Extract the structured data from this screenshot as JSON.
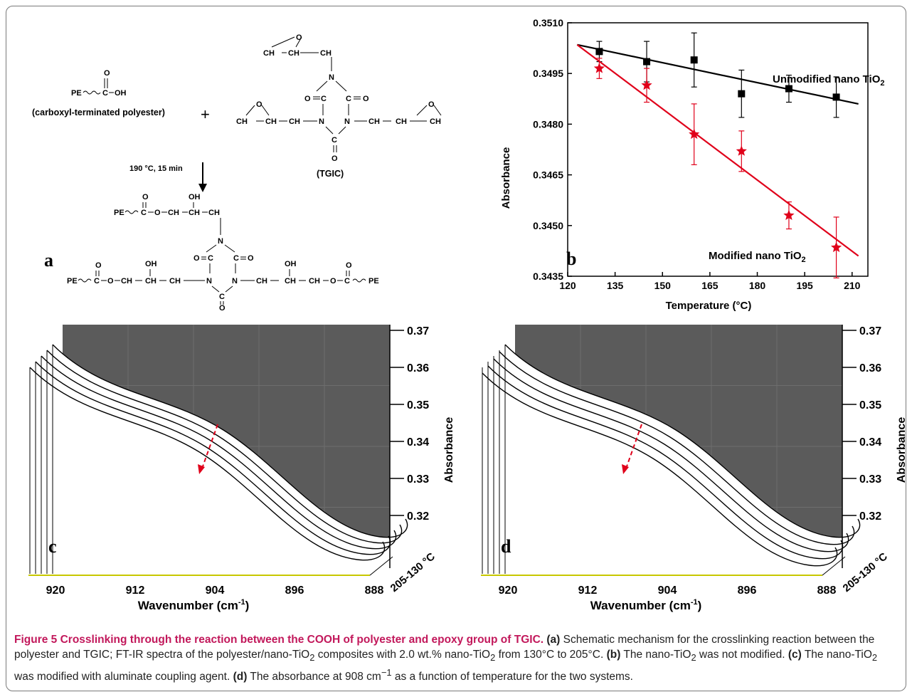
{
  "panel_a": {
    "letter": "a",
    "pe": "PE",
    "cooh_c": "C",
    "cooh_oh": "OH",
    "cooh_o": "O",
    "polyester_label": "(carboxyl-terminated polyester)",
    "plus": "+",
    "tgic_label": "(TGIC)",
    "condition": "190 °C, 15 min",
    "ch2": "CH",
    "ch": "CH",
    "n": "N",
    "o": "O",
    "oh": "OH"
  },
  "panel_b": {
    "letter": "b",
    "unmod_label": "Unmodified nano TiO",
    "mod_label": "Modified nano TiO",
    "sub2": "2"
  },
  "panel_c": {
    "letter": "c"
  },
  "panel_d": {
    "letter": "d"
  },
  "spectra": {
    "x_ticks": [
      "920",
      "912",
      "904",
      "896",
      "888"
    ],
    "y_ticks": [
      "0.37",
      "0.36",
      "0.35",
      "0.34",
      "0.33",
      "0.32"
    ],
    "xlabel": "Wavenumber (cm",
    "xlabel_sup": "-1",
    "xlabel_end": ")",
    "ylabel": "Absorbance",
    "depth_label": "205-130 °C"
  },
  "caption": {
    "title": "Figure 5 Crosslinking through the reaction between the COOH of polyester and epoxy group of TGIC.",
    "a_tag": "(a)",
    "a_text": " Schematic mechanism for the crosslinking reaction between the polyester and TGIC; FT-IR spectra of the polyester/nano-TiO",
    "a_text2": " composites with 2.0 wt.% nano-TiO",
    "a_text3": " from 130°C to 205°C. ",
    "b_tag": "(b)",
    "b_text": " The nano-TiO",
    "b_text2": " was not modified. ",
    "c_tag": "(c)",
    "c_text": " The nano-TiO",
    "c_text2": " was modified with aluminate coupling agent. ",
    "d_tag": "(d)",
    "d_text": " The absorbance at 908 cm",
    "d_sup": "−1",
    "d_text2": " as a function of temperature for the two systems.",
    "sub2": "2"
  },
  "chart_data": {
    "type": "scatter",
    "xlabel": "Temperature (°C)",
    "ylabel": "Absorbance",
    "xlim": [
      120,
      215
    ],
    "ylim": [
      0.3435,
      0.351
    ],
    "x_ticks": [
      120,
      135,
      150,
      165,
      180,
      195,
      210
    ],
    "y_ticks": [
      0.3435,
      0.345,
      0.3465,
      0.348,
      0.3495,
      0.351
    ],
    "series": [
      {
        "name": "Unmodified nano TiO2",
        "color": "#000000",
        "marker": "square",
        "x": [
          130,
          145,
          160,
          175,
          190,
          205
        ],
        "y": [
          0.35015,
          0.34985,
          0.3499,
          0.3489,
          0.34905,
          0.3488
        ],
        "err": [
          0.0003,
          0.0006,
          0.0008,
          0.0007,
          0.0004,
          0.0006
        ],
        "fit": [
          [
            123,
            0.35035
          ],
          [
            212,
            0.3486
          ]
        ]
      },
      {
        "name": "Modified nano TiO2",
        "color": "#e0001a",
        "marker": "star",
        "x": [
          130,
          145,
          160,
          175,
          190,
          205
        ],
        "y": [
          0.34965,
          0.34915,
          0.3477,
          0.3472,
          0.3453,
          0.34435
        ],
        "err": [
          0.0003,
          0.0005,
          0.0009,
          0.0006,
          0.0004,
          0.0009
        ],
        "fit": [
          [
            123,
            0.35035
          ],
          [
            212,
            0.3441
          ]
        ]
      }
    ]
  }
}
